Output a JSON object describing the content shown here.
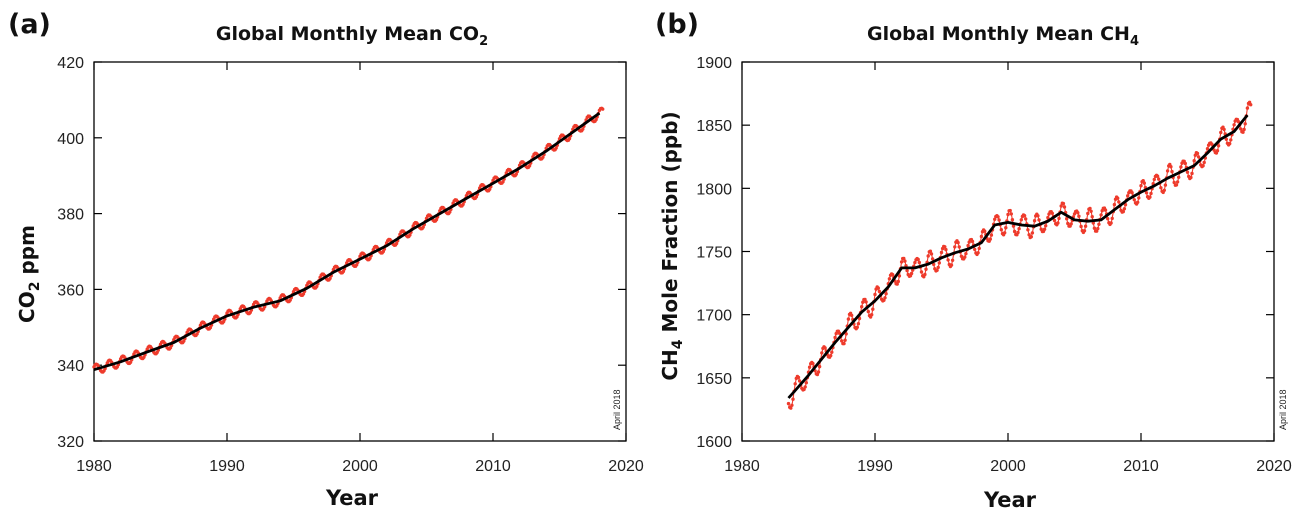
{
  "chart_data": [
    {
      "panel": "(a)",
      "type": "line",
      "title": "Global Monthly Mean CO",
      "title_sub": "2",
      "xlabel": "Year",
      "ylabel": "CO",
      "ylabel_sub": "2",
      "ylabel_rest": " ppm",
      "stamp": "April 2018",
      "xlim": [
        1980,
        2020
      ],
      "ylim": [
        320,
        420
      ],
      "xticks": [
        "1980",
        "1990",
        "2000",
        "2010",
        "2020"
      ],
      "yticks": [
        "320",
        "340",
        "360",
        "380",
        "400",
        "420"
      ],
      "grid": false,
      "colors": {
        "monthly": "#ee3b2c",
        "trend": "#000000"
      },
      "seasonal_amplitude": 1.3,
      "series": [
        {
          "role": "trend",
          "x": [
            1980,
            1982,
            1984,
            1986,
            1988,
            1990,
            1992,
            1994,
            1996,
            1998,
            2000,
            2002,
            2004,
            2006,
            2008,
            2010,
            2012,
            2014,
            2016,
            2018
          ],
          "y": [
            338.8,
            340.9,
            343.5,
            346.0,
            349.8,
            353.0,
            355.3,
            357.0,
            360.3,
            364.5,
            368.0,
            371.5,
            376.0,
            380.0,
            384.0,
            388.0,
            392.0,
            396.5,
            401.5,
            406.5
          ]
        }
      ]
    },
    {
      "panel": "(b)",
      "type": "line",
      "title": "Global Monthly Mean CH",
      "title_sub": "4",
      "xlabel": "Year",
      "ylabel": "CH",
      "ylabel_sub": "4",
      "ylabel_rest": " Mole Fraction (ppb)",
      "stamp": "April 2018",
      "xlim": [
        1980,
        2020
      ],
      "ylim": [
        1600,
        1900
      ],
      "xticks": [
        "1980",
        "1990",
        "2000",
        "2010",
        "2020"
      ],
      "yticks": [
        "1600",
        "1650",
        "1700",
        "1750",
        "1800",
        "1850",
        "1900"
      ],
      "grid": false,
      "colors": {
        "monthly": "#ee3b2c",
        "trend": "#000000"
      },
      "seasonal_amplitude": 8,
      "series": [
        {
          "role": "trend",
          "x": [
            1983.5,
            1984,
            1985,
            1986,
            1987,
            1988,
            1989,
            1990,
            1991,
            1992,
            1993,
            1994,
            1995,
            1996,
            1997,
            1998,
            1999,
            2000,
            2001,
            2002,
            2003,
            2004,
            2005,
            2006,
            2007,
            2008,
            2009,
            2010,
            2011,
            2012,
            2013,
            2014,
            2015,
            2016,
            2017,
            2018
          ],
          "y": [
            1634,
            1640,
            1652,
            1665,
            1678,
            1690,
            1702,
            1711,
            1722,
            1737,
            1737,
            1740,
            1745,
            1749,
            1752,
            1757,
            1771,
            1773,
            1771,
            1770,
            1774,
            1781,
            1775,
            1774,
            1775,
            1783,
            1791,
            1797,
            1802,
            1808,
            1813,
            1818,
            1828,
            1839,
            1845,
            1858
          ]
        }
      ]
    }
  ]
}
